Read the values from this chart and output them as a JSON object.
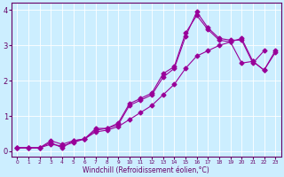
{
  "bg_color": "#cceeff",
  "line_color": "#990099",
  "grid_color": "#ffffff",
  "xlim": [
    -0.5,
    23.5
  ],
  "ylim": [
    -0.15,
    4.2
  ],
  "xticks": [
    0,
    1,
    2,
    3,
    4,
    5,
    6,
    7,
    8,
    9,
    10,
    11,
    12,
    13,
    14,
    15,
    16,
    17,
    18,
    19,
    20,
    21,
    22,
    23
  ],
  "yticks": [
    0,
    1,
    2,
    3,
    4
  ],
  "xlabel": "Windchill (Refroidissement éolien,°C)",
  "line1_x": [
    0,
    1,
    2,
    3,
    4,
    5,
    6,
    7,
    8,
    9,
    10,
    11,
    12,
    13,
    14,
    15,
    16,
    17,
    18,
    19,
    20,
    21,
    22,
    23
  ],
  "line1_y": [
    0.1,
    0.1,
    0.1,
    0.3,
    0.2,
    0.3,
    0.35,
    0.65,
    0.65,
    0.8,
    1.35,
    1.5,
    1.65,
    2.2,
    2.4,
    3.35,
    3.85,
    3.45,
    3.15,
    3.1,
    2.5,
    2.55,
    2.3,
    2.8
  ],
  "line2_x": [
    0,
    1,
    2,
    3,
    4,
    5,
    6,
    7,
    8,
    9,
    10,
    11,
    12,
    13,
    14,
    15,
    16,
    17,
    18,
    19,
    20,
    21,
    22,
    23
  ],
  "line2_y": [
    0.1,
    0.1,
    0.1,
    0.25,
    0.1,
    0.3,
    0.35,
    0.6,
    0.65,
    0.75,
    1.3,
    1.45,
    1.6,
    2.1,
    2.35,
    3.25,
    3.95,
    3.5,
    3.2,
    3.15,
    3.15,
    2.5,
    2.85,
    null
  ],
  "line3_x": [
    0,
    1,
    2,
    3,
    4,
    5,
    6,
    7,
    8,
    9,
    10,
    11,
    12,
    13,
    14,
    15,
    16,
    17,
    18,
    19,
    20,
    21,
    22,
    23
  ],
  "line3_y": [
    0.1,
    0.1,
    0.1,
    0.2,
    0.15,
    0.25,
    0.35,
    0.55,
    0.6,
    0.7,
    0.9,
    1.1,
    1.3,
    1.6,
    1.9,
    2.35,
    2.7,
    2.85,
    3.0,
    3.1,
    3.2,
    2.55,
    2.3,
    2.85
  ]
}
